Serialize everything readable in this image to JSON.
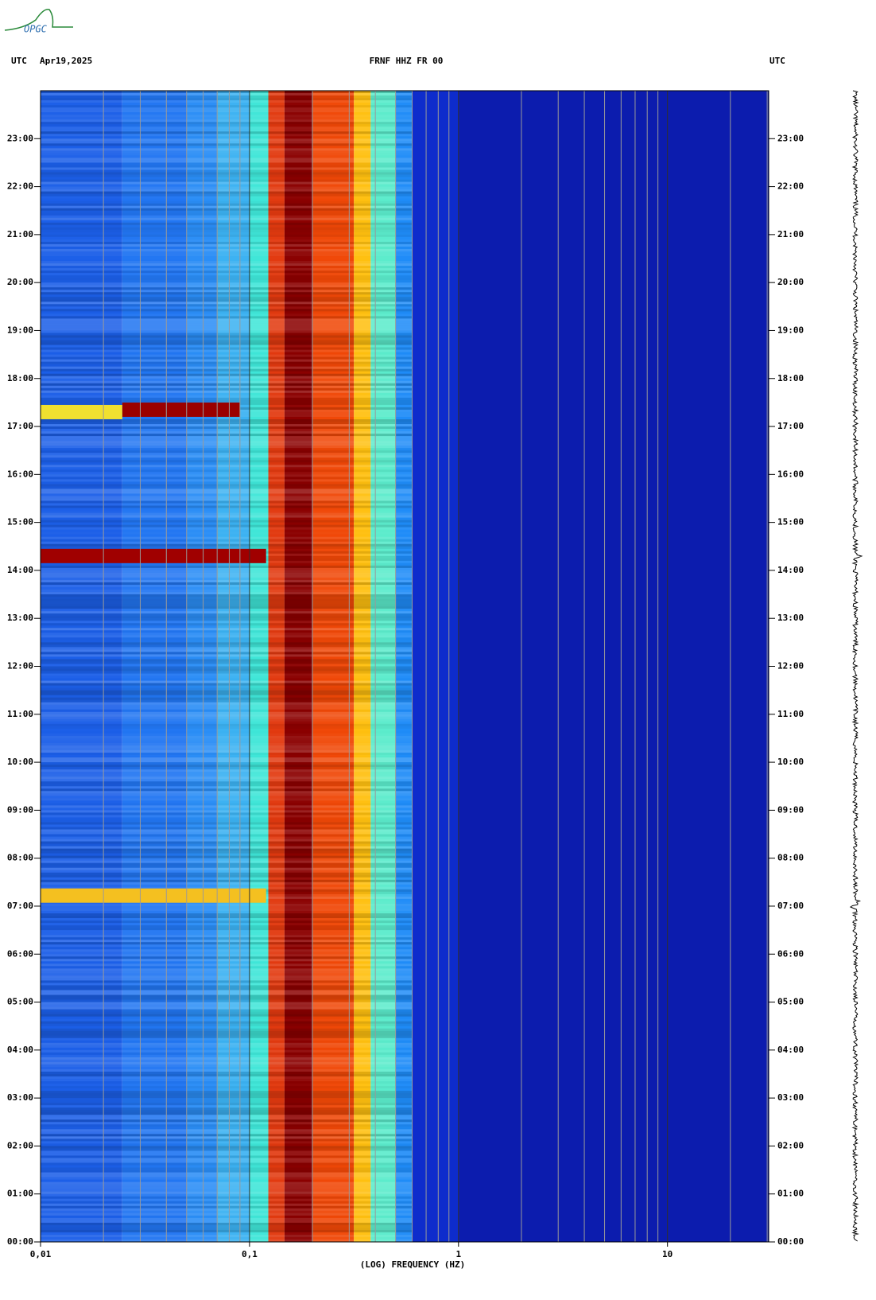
{
  "chart_data": {
    "type": "spectrogram",
    "logo": "OPGC",
    "title": "FRNF HHZ FR 00",
    "left_header": "UTC",
    "date": "Apr19,2025",
    "right_header": "UTC",
    "x_label": "(LOG) FREQUENCY (HZ)",
    "x_log": true,
    "xlim": [
      0.01,
      30.5
    ],
    "xticks": [
      {
        "value": 0.01,
        "label": "0,01"
      },
      {
        "value": 0.1,
        "label": "0,1"
      },
      1,
      10
    ],
    "x_minor_grid": [
      0.02,
      0.03,
      0.04,
      0.05,
      0.06,
      0.07,
      0.08,
      0.09,
      0.2,
      0.3,
      0.4,
      0.5,
      0.6,
      0.7,
      0.8,
      0.9,
      2,
      3,
      4,
      5,
      6,
      7,
      8,
      9,
      20,
      30
    ],
    "ylim": [
      0,
      24
    ],
    "yticks": [
      {
        "value": 0,
        "label": "00:00"
      },
      {
        "value": 1,
        "label": "01:00"
      },
      {
        "value": 2,
        "label": "02:00"
      },
      {
        "value": 3,
        "label": "03:00"
      },
      {
        "value": 4,
        "label": "04:00"
      },
      {
        "value": 5,
        "label": "05:00"
      },
      {
        "value": 6,
        "label": "06:00"
      },
      {
        "value": 7,
        "label": "07:00"
      },
      {
        "value": 8,
        "label": "08:00"
      },
      {
        "value": 9,
        "label": "09:00"
      },
      {
        "value": 10,
        "label": "10:00"
      },
      {
        "value": 11,
        "label": "11:00"
      },
      {
        "value": 12,
        "label": "12:00"
      },
      {
        "value": 13,
        "label": "13:00"
      },
      {
        "value": 14,
        "label": "14:00"
      },
      {
        "value": 15,
        "label": "15:00"
      },
      {
        "value": 16,
        "label": "16:00"
      },
      {
        "value": 17,
        "label": "17:00"
      },
      {
        "value": 18,
        "label": "18:00"
      },
      {
        "value": 19,
        "label": "19:00"
      },
      {
        "value": 20,
        "label": "20:00"
      },
      {
        "value": 21,
        "label": "21:00"
      },
      {
        "value": 22,
        "label": "22:00"
      },
      {
        "value": 23,
        "label": "23:00"
      }
    ],
    "bands": [
      {
        "fmin": 0.01,
        "fmax": 0.0246,
        "color": "#1c5fe8"
      },
      {
        "fmin": 0.0246,
        "fmax": 0.05,
        "color": "#2276f2"
      },
      {
        "fmin": 0.05,
        "fmax": 0.07,
        "color": "#2b8ef6"
      },
      {
        "fmin": 0.07,
        "fmax": 0.1,
        "color": "#3cb2f2"
      },
      {
        "fmin": 0.1,
        "fmax": 0.123,
        "color": "#3fe6d8"
      },
      {
        "fmin": 0.123,
        "fmax": 0.147,
        "color": "#e23a10"
      },
      {
        "fmin": 0.147,
        "fmax": 0.199,
        "color": "#8b0000"
      },
      {
        "fmin": 0.199,
        "fmax": 0.316,
        "color": "#f04808"
      },
      {
        "fmin": 0.316,
        "fmax": 0.38,
        "color": "#ffc010"
      },
      {
        "fmin": 0.38,
        "fmax": 0.5,
        "color": "#5ceccc"
      },
      {
        "fmin": 0.5,
        "fmax": 0.6,
        "color": "#1f8cf8"
      },
      {
        "fmin": 0.6,
        "fmax": 1,
        "color": "#0e2ccc"
      },
      {
        "fmin": 1,
        "fmax": 30.5,
        "color": "#0c1cae"
      }
    ],
    "events": [
      {
        "time": 17.35,
        "fmin": 0.0246,
        "fmax": 0.09,
        "color": "#9a0000"
      },
      {
        "time": 17.3,
        "fmin": 0.01,
        "fmax": 0.0246,
        "color": "#f0e030"
      },
      {
        "time": 14.3,
        "fmin": 0.01,
        "fmax": 0.12,
        "color": "#a00000"
      },
      {
        "time": 7.22,
        "fmin": 0.01,
        "fmax": 0.12,
        "color": "#f4c020"
      }
    ]
  }
}
